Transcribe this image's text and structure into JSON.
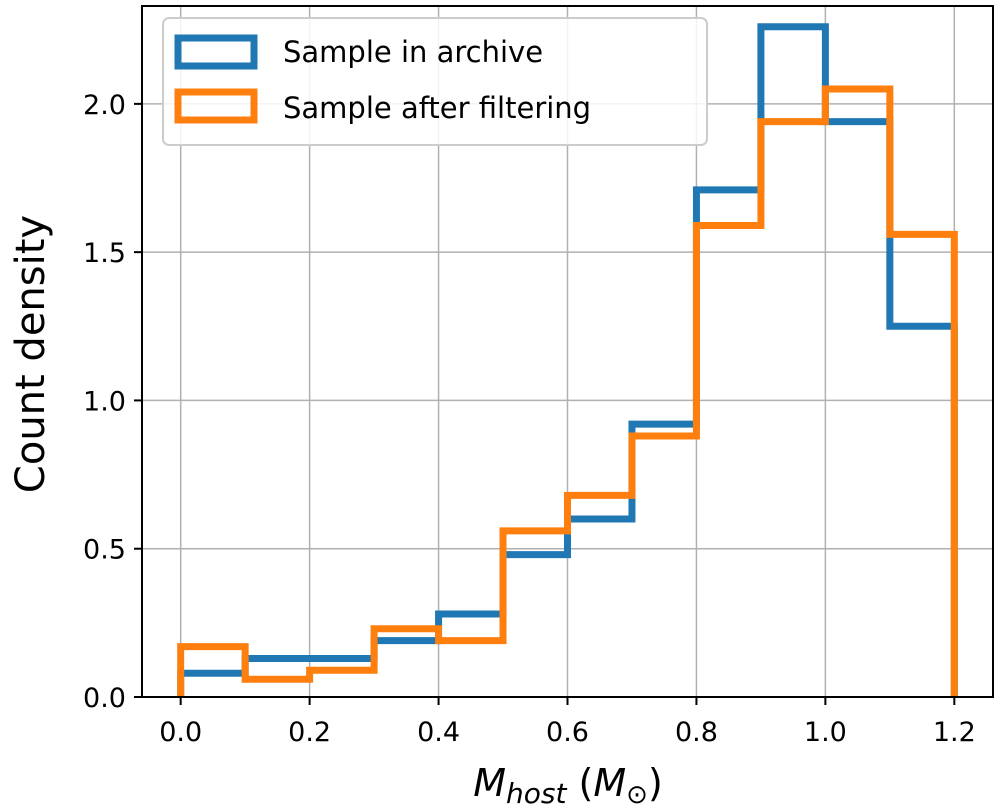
{
  "chart_data": {
    "type": "histogram",
    "xlabel": {
      "main": "M",
      "sub": "host",
      "unit_open": " (",
      "unit_main": "M",
      "unit_sub": "⊙",
      "unit_close": ")"
    },
    "ylabel": "Count density",
    "xlim": [
      -0.06,
      1.26
    ],
    "ylim": [
      0,
      2.33
    ],
    "xticks": [
      0.0,
      0.2,
      0.4,
      0.6,
      0.8,
      1.0,
      1.2
    ],
    "xtick_labels": [
      "0.0",
      "0.2",
      "0.4",
      "0.6",
      "0.8",
      "1.0",
      "1.2"
    ],
    "yticks": [
      0.0,
      0.5,
      1.0,
      1.5,
      2.0
    ],
    "ytick_labels": [
      "0.0",
      "0.5",
      "1.0",
      "1.5",
      "2.0"
    ],
    "grid": true,
    "legend_position": "top-left",
    "bin_edges": [
      0.0,
      0.1,
      0.2,
      0.3,
      0.4,
      0.5,
      0.6,
      0.7,
      0.8,
      0.9,
      1.0,
      1.1,
      1.2
    ],
    "series": [
      {
        "name": "Sample in archive",
        "color": "#1f77b4",
        "values": [
          0.08,
          0.13,
          0.13,
          0.19,
          0.28,
          0.48,
          0.6,
          0.92,
          1.71,
          2.26,
          1.94,
          1.25
        ]
      },
      {
        "name": "Sample after filtering",
        "color": "#ff7f0e",
        "values": [
          0.17,
          0.06,
          0.09,
          0.23,
          0.19,
          0.56,
          0.68,
          0.88,
          1.59,
          1.94,
          2.05,
          1.56
        ]
      }
    ]
  }
}
